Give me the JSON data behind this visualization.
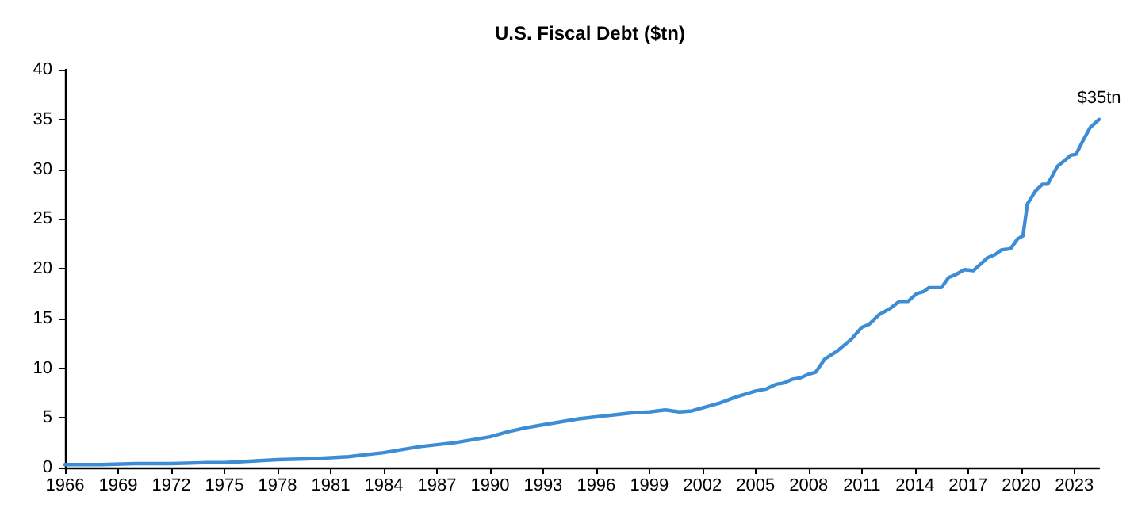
{
  "chart_data": {
    "type": "line",
    "title": "U.S. Fiscal Debt ($tn)",
    "x": [
      1966,
      1968,
      1970,
      1972,
      1974,
      1975,
      1977,
      1978,
      1980,
      1981,
      1982,
      1983,
      1984,
      1985,
      1986,
      1987,
      1988,
      1989,
      1990,
      1991,
      1992,
      1993,
      1994,
      1995,
      1996,
      1997,
      1998,
      1999,
      1999.9,
      2000.7,
      2001.4,
      2002,
      2003,
      2003.9,
      2005,
      2005.6,
      2006.2,
      2006.6,
      2007.1,
      2007.5,
      2008,
      2008.4,
      2008.9,
      2009.6,
      2010.4,
      2011,
      2011.4,
      2012,
      2012.6,
      2013.1,
      2013.6,
      2014.1,
      2014.5,
      2014.8,
      2015.5,
      2015.9,
      2016.3,
      2016.8,
      2017.3,
      2017.8,
      2018.1,
      2018.5,
      2018.9,
      2019.4,
      2019.8,
      2020.1,
      2020.35,
      2020.8,
      2021.2,
      2021.5,
      2022.05,
      2022.4,
      2022.8,
      2023.1,
      2023.5,
      2023.9,
      2024.4
    ],
    "values": [
      0.3,
      0.3,
      0.4,
      0.4,
      0.5,
      0.5,
      0.7,
      0.8,
      0.9,
      1.0,
      1.1,
      1.3,
      1.5,
      1.8,
      2.1,
      2.3,
      2.5,
      2.8,
      3.1,
      3.6,
      4.0,
      4.3,
      4.6,
      4.9,
      5.1,
      5.3,
      5.5,
      5.6,
      5.8,
      5.6,
      5.7,
      6.0,
      6.5,
      7.1,
      7.7,
      7.9,
      8.4,
      8.5,
      8.9,
      9.0,
      9.4,
      9.6,
      10.9,
      11.7,
      12.9,
      14.1,
      14.4,
      15.4,
      16.0,
      16.7,
      16.7,
      17.5,
      17.7,
      18.1,
      18.1,
      19.1,
      19.4,
      19.9,
      19.8,
      20.6,
      21.1,
      21.4,
      21.9,
      22.0,
      23.0,
      23.3,
      26.5,
      27.8,
      28.5,
      28.5,
      30.3,
      30.8,
      31.4,
      31.5,
      32.9,
      34.2,
      35
    ],
    "color": "#3c8dd6",
    "xlim": [
      1966,
      2024.4
    ],
    "xticks": [
      1966,
      1969,
      1972,
      1975,
      1978,
      1981,
      1984,
      1987,
      1990,
      1993,
      1996,
      1999,
      2002,
      2005,
      2008,
      2011,
      2014,
      2017,
      2020,
      2023
    ],
    "ylim": [
      0,
      40
    ],
    "yticks": [
      0,
      5,
      10,
      15,
      20,
      25,
      30,
      35,
      40
    ],
    "annotations": [
      {
        "text": "$35tn",
        "x": 2024.4,
        "y": 35
      }
    ]
  }
}
